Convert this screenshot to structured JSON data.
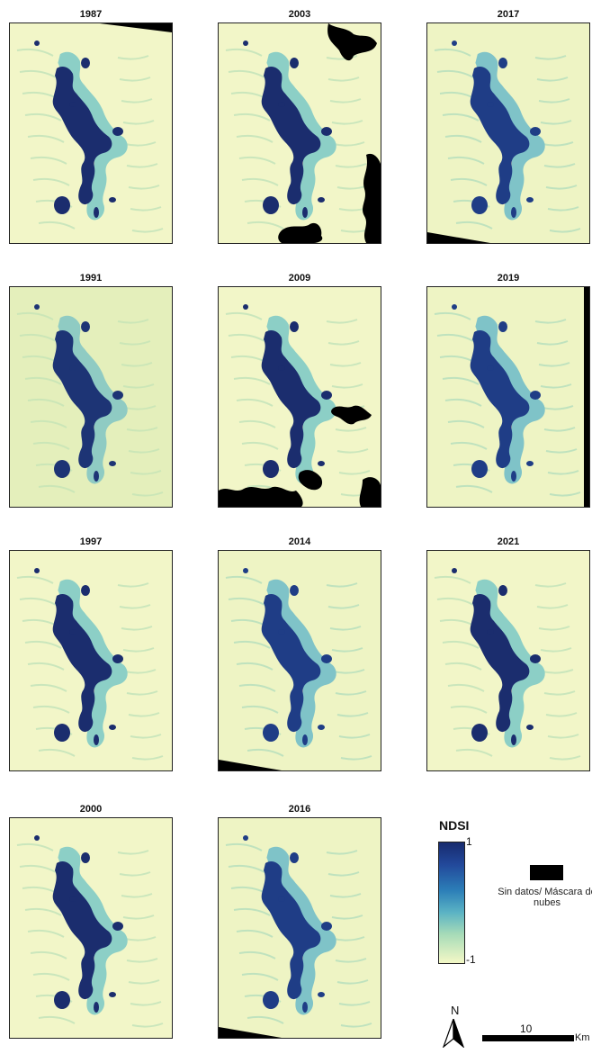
{
  "panels": [
    {
      "year": "1987",
      "col": 0,
      "row": 0,
      "variant": "dark",
      "nodata": "tr"
    },
    {
      "year": "2003",
      "col": 1,
      "row": 0,
      "variant": "dark",
      "nodata": "clouds2003"
    },
    {
      "year": "2017",
      "col": 2,
      "row": 0,
      "variant": "light",
      "nodata": "bl"
    },
    {
      "year": "1991",
      "col": 0,
      "row": 1,
      "variant": "pale",
      "nodata": "none"
    },
    {
      "year": "2009",
      "col": 1,
      "row": 1,
      "variant": "dark",
      "nodata": "clouds2009"
    },
    {
      "year": "2019",
      "col": 2,
      "row": 1,
      "variant": "light",
      "nodata": "right"
    },
    {
      "year": "1997",
      "col": 0,
      "row": 2,
      "variant": "dark",
      "nodata": "none"
    },
    {
      "year": "2014",
      "col": 1,
      "row": 2,
      "variant": "light",
      "nodata": "bl"
    },
    {
      "year": "2021",
      "col": 2,
      "row": 2,
      "variant": "dark",
      "nodata": "none"
    },
    {
      "year": "2000",
      "col": 0,
      "row": 3,
      "variant": "dark",
      "nodata": "none"
    },
    {
      "year": "2016",
      "col": 1,
      "row": 3,
      "variant": "light",
      "nodata": "bl"
    }
  ],
  "legend": {
    "title": "NDSI",
    "max_label": "1",
    "min_label": "-1",
    "nodata_label": "Sin datos/ Máscara de nubes",
    "colors": [
      "#f4f8c6",
      "#a6dbb8",
      "#5bb3c4",
      "#2c7fb8",
      "#22489a",
      "#172a6e"
    ]
  },
  "north": {
    "label": "N"
  },
  "scale": {
    "value": "10",
    "unit": "Km"
  }
}
